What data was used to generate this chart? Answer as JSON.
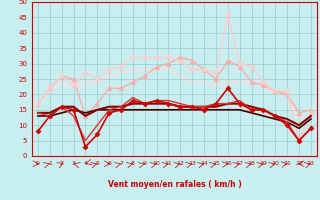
{
  "xlabel": "Vent moyen/en rafales ( km/h )",
  "xlim": [
    -0.5,
    23.5
  ],
  "ylim": [
    0,
    50
  ],
  "yticks": [
    0,
    5,
    10,
    15,
    20,
    25,
    30,
    35,
    40,
    45,
    50
  ],
  "xticks": [
    0,
    1,
    2,
    3,
    4,
    5,
    6,
    7,
    8,
    9,
    10,
    11,
    12,
    13,
    14,
    15,
    16,
    17,
    18,
    19,
    20,
    21,
    22,
    23
  ],
  "bg_color": "#c8eef0",
  "grid_color": "#99cccc",
  "series": [
    {
      "y": [
        8,
        13,
        16,
        15,
        3,
        7,
        14,
        15,
        18,
        17,
        18,
        17,
        16,
        16,
        15,
        17,
        22,
        17,
        15,
        15,
        13,
        10,
        5,
        9
      ],
      "color": "#cc0000",
      "lw": 1.2,
      "marker": "D",
      "ms": 2.5,
      "zorder": 6
    },
    {
      "y": [
        14,
        13,
        16,
        13,
        5,
        10,
        15,
        16,
        19,
        17,
        18,
        18,
        17,
        16,
        16,
        17,
        17,
        18,
        15,
        15,
        13,
        11,
        5,
        9
      ],
      "color": "#dd3333",
      "lw": 1.0,
      "marker": null,
      "ms": 0,
      "zorder": 5
    },
    {
      "y": [
        14,
        14,
        16,
        16,
        13,
        15,
        16,
        16,
        17,
        17,
        17,
        17,
        16,
        16,
        16,
        16,
        17,
        17,
        16,
        15,
        13,
        12,
        10,
        13
      ],
      "color": "#880000",
      "lw": 1.5,
      "marker": null,
      "ms": 0,
      "zorder": 4
    },
    {
      "y": [
        13,
        13,
        14,
        15,
        14,
        15,
        15,
        15,
        15,
        15,
        15,
        15,
        15,
        15,
        15,
        15,
        15,
        15,
        14,
        13,
        12,
        11,
        9,
        12
      ],
      "color": "#440000",
      "lw": 1.2,
      "marker": null,
      "ms": 0,
      "zorder": 3
    },
    {
      "y": [
        17,
        22,
        26,
        25,
        13,
        17,
        22,
        22,
        24,
        26,
        29,
        30,
        32,
        31,
        28,
        25,
        31,
        29,
        24,
        23,
        21,
        20,
        14,
        15
      ],
      "color": "#ffaaaa",
      "lw": 1.0,
      "marker": "^",
      "ms": 3,
      "zorder": 2
    },
    {
      "y": [
        17,
        22,
        26,
        23,
        27,
        25,
        28,
        29,
        32,
        32,
        32,
        32,
        31,
        28,
        28,
        27,
        46,
        30,
        29,
        24,
        21,
        21,
        5,
        14
      ],
      "color": "#ffcccc",
      "lw": 1.0,
      "marker": "*",
      "ms": 4,
      "zorder": 2
    },
    {
      "y": [
        17,
        21,
        24,
        22,
        24,
        24,
        26,
        27,
        28,
        28,
        28,
        28,
        26,
        24,
        24,
        23,
        24,
        24,
        24,
        23,
        20,
        20,
        12,
        13
      ],
      "color": "#ffdddd",
      "lw": 1.2,
      "marker": null,
      "ms": 0,
      "zorder": 1
    }
  ],
  "arrow_angles": [
    90,
    45,
    30,
    315,
    225,
    45,
    90,
    45,
    45,
    45,
    45,
    45,
    45,
    45,
    45,
    45,
    60,
    45,
    45,
    45,
    45,
    60,
    270,
    45
  ]
}
